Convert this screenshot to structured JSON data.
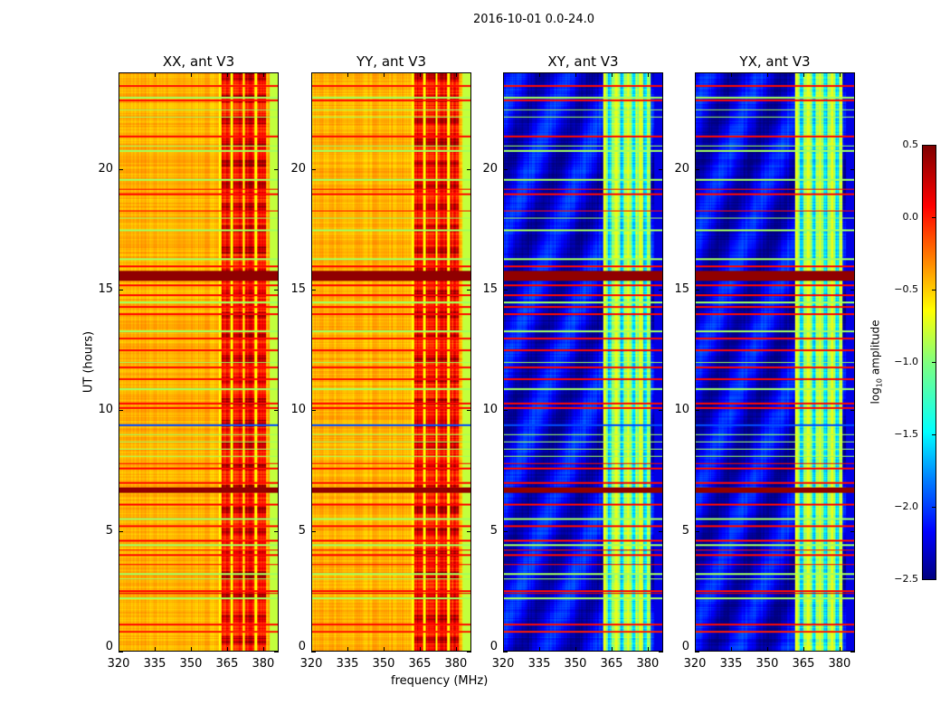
{
  "figure": {
    "suptitle": "2016-10-01 0.0-24.0",
    "ylabel": "UT (hours)",
    "xlabel": "frequency (MHz)"
  },
  "colorbar": {
    "label_prefix": "log",
    "label_sub": "10",
    "label_suffix": " amplitude",
    "range": [
      -2.5,
      0.5
    ],
    "ticks": [
      "0.5",
      "0.0",
      "−0.5",
      "−1.0",
      "−1.5",
      "−2.0",
      "−2.5"
    ],
    "tick_values": [
      0.5,
      0.0,
      -0.5,
      -1.0,
      -1.5,
      -2.0,
      -2.5
    ],
    "colormap": "jet"
  },
  "chart_data": {
    "type": "heatmap",
    "xlim": [
      320,
      386.4
    ],
    "ylim": [
      0,
      24
    ],
    "xticks": [
      320,
      335,
      350,
      365,
      380
    ],
    "xtick_labels": [
      "320",
      "335",
      "350",
      "365",
      "380"
    ],
    "yticks": [
      0,
      5,
      10,
      15,
      20
    ],
    "ytick_labels": [
      "0",
      "5",
      "10",
      "15",
      "20"
    ],
    "rfi_band_MHz": [
      361.5,
      381.5
    ],
    "panels": [
      {
        "title": "XX, ant V3",
        "base": -0.4,
        "band": 0.05
      },
      {
        "title": "YY, ant V3",
        "base": -0.4,
        "band": 0.05
      },
      {
        "title": "XY, ant V3",
        "base": -2.2,
        "band": -0.9
      },
      {
        "title": "YX, ant V3",
        "base": -2.2,
        "band": -0.9
      }
    ],
    "row_features": [
      {
        "hour": 0.8,
        "value": 0.05
      },
      {
        "hour": 1.1,
        "value": 0.1
      },
      {
        "hour": 2.2,
        "value": -0.9
      },
      {
        "hour": 2.4,
        "value": 0.2
      },
      {
        "hour": 2.5,
        "value": 0.1
      },
      {
        "hour": 3.0,
        "value": -0.9
      },
      {
        "hour": 3.2,
        "value": -0.9
      },
      {
        "hour": 3.6,
        "value": 0.1
      },
      {
        "hour": 4.0,
        "value": 0.1
      },
      {
        "hour": 4.2,
        "value": 0.1
      },
      {
        "hour": 4.4,
        "value": -0.9
      },
      {
        "hour": 4.6,
        "value": 0.1
      },
      {
        "hour": 5.2,
        "value": 0.1
      },
      {
        "hour": 5.5,
        "value": -0.9
      },
      {
        "hour": 6.1,
        "value": 0.1
      },
      {
        "hour": 6.7,
        "value": 0.45
      },
      {
        "hour": 7.0,
        "value": 0.1
      },
      {
        "hour": 7.6,
        "value": 0.1
      },
      {
        "hour": 7.8,
        "value": 0.1
      },
      {
        "hour": 8.1,
        "value": -0.9
      },
      {
        "hour": 8.4,
        "value": -0.9
      },
      {
        "hour": 8.7,
        "value": -0.9
      },
      {
        "hour": 9.0,
        "value": -0.9
      },
      {
        "hour": 9.4,
        "value": -1.9
      },
      {
        "hour": 10.1,
        "value": 0.1
      },
      {
        "hour": 10.3,
        "value": 0.1
      },
      {
        "hour": 10.9,
        "value": -0.9
      },
      {
        "hour": 11.3,
        "value": 0.1
      },
      {
        "hour": 11.8,
        "value": 0.1
      },
      {
        "hour": 12.0,
        "value": -0.9
      },
      {
        "hour": 12.5,
        "value": 0.1
      },
      {
        "hour": 13.0,
        "value": 0.1
      },
      {
        "hour": 13.3,
        "value": -0.9
      },
      {
        "hour": 14.0,
        "value": 0.1
      },
      {
        "hour": 14.3,
        "value": 0.1
      },
      {
        "hour": 14.5,
        "value": -0.9
      },
      {
        "hour": 14.8,
        "value": 0.1
      },
      {
        "hour": 15.2,
        "value": 0.1
      },
      {
        "hour": 15.5,
        "value": 0.45
      },
      {
        "hour": 15.7,
        "value": 0.45
      },
      {
        "hour": 16.0,
        "value": 0.1
      },
      {
        "hour": 16.3,
        "value": -0.9
      },
      {
        "hour": 17.5,
        "value": -0.9
      },
      {
        "hour": 18.0,
        "value": -0.9
      },
      {
        "hour": 18.3,
        "value": 0.1
      },
      {
        "hour": 19.0,
        "value": 0.1
      },
      {
        "hour": 19.2,
        "value": 0.1
      },
      {
        "hour": 19.6,
        "value": -0.9
      },
      {
        "hour": 20.8,
        "value": -0.9
      },
      {
        "hour": 21.0,
        "value": -0.9
      },
      {
        "hour": 21.4,
        "value": 0.1
      },
      {
        "hour": 22.2,
        "value": -0.9
      },
      {
        "hour": 22.5,
        "value": -0.9
      },
      {
        "hour": 22.9,
        "value": 0.1
      },
      {
        "hour": 23.0,
        "value": -0.9
      },
      {
        "hour": 23.5,
        "value": 0.1
      }
    ]
  }
}
